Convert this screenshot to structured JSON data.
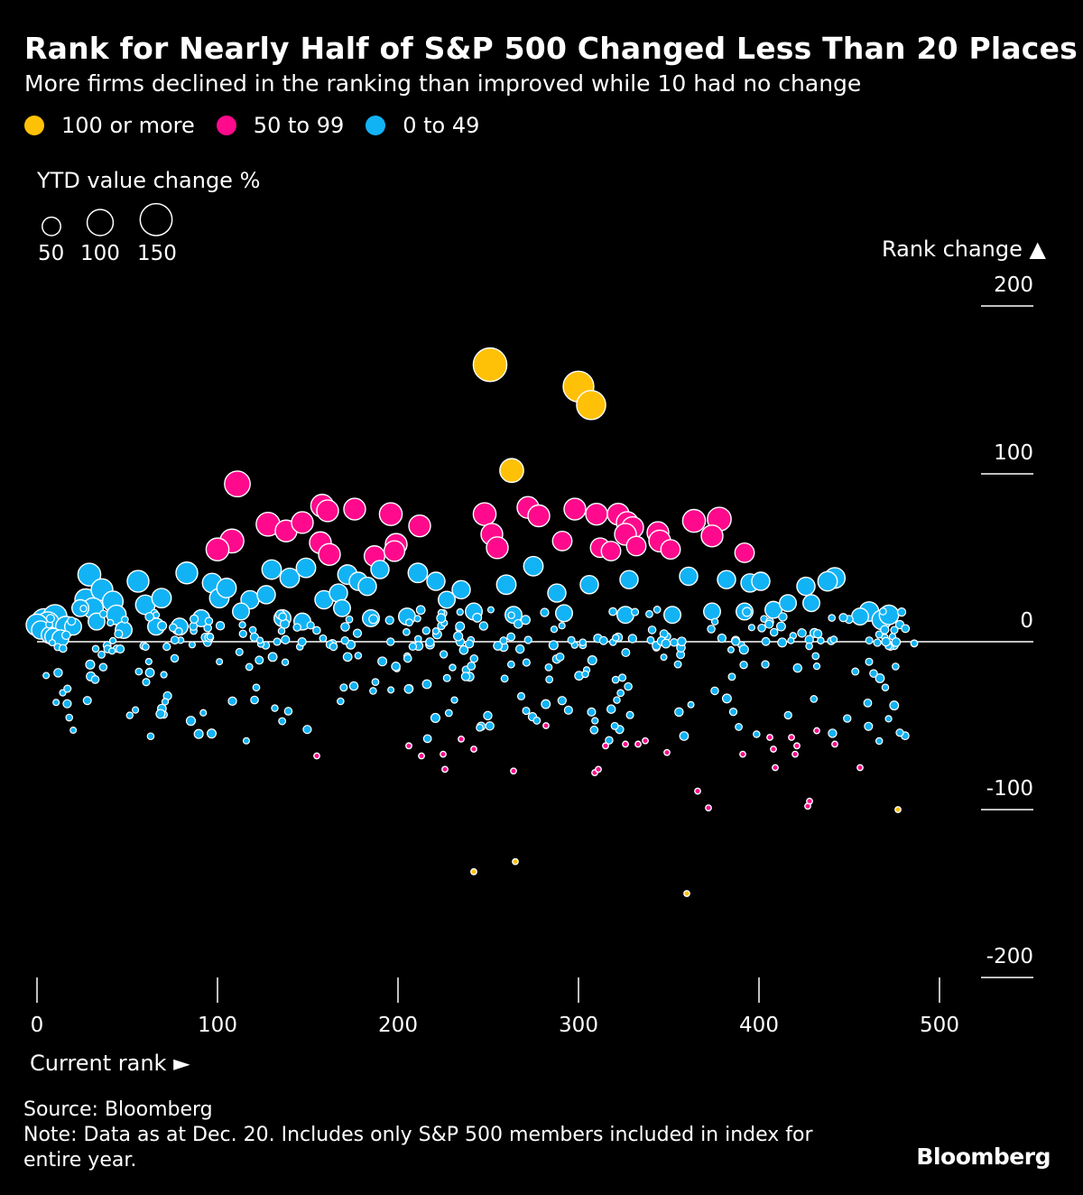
{
  "chart_data": {
    "type": "scatter",
    "title": "Rank for Nearly Half of S&P 500 Changed Less Than 20 Places",
    "subtitle": "More firms declined in the ranking than improved while 10 had no change",
    "legend": [
      {
        "label": "100 or more",
        "color": "#ffc107"
      },
      {
        "label": "50 to 99",
        "color": "#ff0a8c"
      },
      {
        "label": "0 to 49",
        "color": "#12b3f5"
      }
    ],
    "size_legend": {
      "title": "YTD value change %",
      "values": [
        50,
        100,
        150
      ],
      "labels": [
        "50",
        "100",
        "150"
      ]
    },
    "xlabel": "Current rank",
    "xlabel_arrow": "►",
    "ylabel": "Rank change",
    "ylabel_arrow": "▲",
    "xlim": [
      0,
      500
    ],
    "ylim": [
      -200,
      200
    ],
    "xticks": [
      0,
      100,
      200,
      300,
      400,
      500
    ],
    "xtick_labels": [
      "0",
      "100",
      "200",
      "300",
      "400",
      "500"
    ],
    "yticks": [
      200,
      100,
      0,
      -100,
      -200
    ],
    "ytick_labels": [
      "200",
      "100",
      "0",
      "-100",
      "-200"
    ],
    "series": [
      {
        "name": "100 or more",
        "color": "#ffc107",
        "points": [
          [
            251,
            165,
            120
          ],
          [
            300,
            152,
            100
          ],
          [
            307,
            141,
            90
          ],
          [
            263,
            102,
            60
          ],
          [
            242,
            -137,
            3
          ],
          [
            265,
            -131,
            3
          ],
          [
            360,
            -150,
            3
          ],
          [
            477,
            -100,
            3
          ]
        ]
      },
      {
        "name": "50 to 99",
        "color": "#ff0a8c",
        "points": [
          [
            111,
            94,
            70
          ],
          [
            158,
            81,
            55
          ],
          [
            161,
            78,
            50
          ],
          [
            176,
            79,
            50
          ],
          [
            196,
            76,
            55
          ],
          [
            212,
            69,
            50
          ],
          [
            248,
            76,
            55
          ],
          [
            272,
            80,
            50
          ],
          [
            278,
            75,
            50
          ],
          [
            298,
            79,
            50
          ],
          [
            310,
            76,
            50
          ],
          [
            322,
            76,
            50
          ],
          [
            327,
            71,
            50
          ],
          [
            330,
            68,
            50
          ],
          [
            364,
            72,
            55
          ],
          [
            378,
            73,
            60
          ],
          [
            128,
            70,
            60
          ],
          [
            138,
            66,
            50
          ],
          [
            147,
            71,
            50
          ],
          [
            108,
            60,
            60
          ],
          [
            100,
            55,
            55
          ],
          [
            157,
            59,
            50
          ],
          [
            162,
            52,
            50
          ],
          [
            187,
            51,
            45
          ],
          [
            199,
            58,
            50
          ],
          [
            198,
            54,
            45
          ],
          [
            252,
            64,
            50
          ],
          [
            255,
            56,
            50
          ],
          [
            291,
            60,
            40
          ],
          [
            312,
            56,
            40
          ],
          [
            318,
            54,
            40
          ],
          [
            332,
            57,
            40
          ],
          [
            326,
            64,
            50
          ],
          [
            344,
            65,
            50
          ],
          [
            345,
            60,
            50
          ],
          [
            351,
            55,
            40
          ],
          [
            374,
            63,
            50
          ],
          [
            392,
            53,
            40
          ],
          [
            155,
            -68,
            3
          ],
          [
            206,
            -62,
            3
          ],
          [
            213,
            -68,
            3
          ],
          [
            225,
            -67,
            3
          ],
          [
            226,
            -76,
            3
          ],
          [
            235,
            -58,
            3
          ],
          [
            242,
            -64,
            3
          ],
          [
            264,
            -77,
            3
          ],
          [
            282,
            -50,
            3
          ],
          [
            309,
            -78,
            3
          ],
          [
            311,
            -76,
            3
          ],
          [
            315,
            -62,
            3
          ],
          [
            326,
            -61,
            3
          ],
          [
            333,
            -61,
            3
          ],
          [
            337,
            -59,
            3
          ],
          [
            349,
            -66,
            3
          ],
          [
            366,
            -89,
            3
          ],
          [
            372,
            -99,
            3
          ],
          [
            391,
            -67,
            3
          ],
          [
            406,
            -57,
            3
          ],
          [
            408,
            -64,
            3
          ],
          [
            409,
            -75,
            3
          ],
          [
            418,
            -57,
            3
          ],
          [
            420,
            -67,
            3
          ],
          [
            421,
            -62,
            3
          ],
          [
            428,
            -95,
            3
          ],
          [
            427,
            -98,
            3
          ],
          [
            432,
            -53,
            3
          ],
          [
            442,
            -61,
            3
          ],
          [
            456,
            -75,
            3
          ]
        ]
      },
      {
        "name": "0 to 49",
        "color": "#12b3f5",
        "points": [
          [
            4,
            12,
            70
          ],
          [
            10,
            15,
            60
          ],
          [
            16,
            9,
            45
          ],
          [
            27,
            25,
            50
          ],
          [
            29,
            40,
            55
          ],
          [
            31,
            20,
            45
          ],
          [
            36,
            31,
            50
          ],
          [
            42,
            24,
            45
          ],
          [
            44,
            16,
            40
          ],
          [
            56,
            36,
            50
          ],
          [
            60,
            22,
            40
          ],
          [
            69,
            26,
            40
          ],
          [
            83,
            41,
            50
          ],
          [
            97,
            35,
            40
          ],
          [
            101,
            26,
            40
          ],
          [
            105,
            32,
            40
          ],
          [
            118,
            25,
            35
          ],
          [
            127,
            28,
            35
          ],
          [
            130,
            43,
            40
          ],
          [
            140,
            38,
            40
          ],
          [
            149,
            44,
            40
          ],
          [
            159,
            25,
            35
          ],
          [
            167,
            29,
            35
          ],
          [
            172,
            40,
            40
          ],
          [
            178,
            36,
            35
          ],
          [
            183,
            33,
            35
          ],
          [
            190,
            43,
            35
          ],
          [
            211,
            41,
            40
          ],
          [
            221,
            36,
            35
          ],
          [
            235,
            31,
            35
          ],
          [
            260,
            34,
            40
          ],
          [
            275,
            45,
            40
          ],
          [
            288,
            29,
            35
          ],
          [
            306,
            34,
            35
          ],
          [
            328,
            37,
            35
          ],
          [
            361,
            39,
            35
          ],
          [
            382,
            37,
            35
          ],
          [
            395,
            35,
            35
          ],
          [
            401,
            36,
            35
          ],
          [
            426,
            33,
            35
          ],
          [
            438,
            36,
            40
          ],
          [
            442,
            38,
            45
          ],
          [
            461,
            18,
            40
          ],
          [
            468,
            13,
            40
          ],
          [
            472,
            16,
            40
          ],
          [
            2,
            7,
            35
          ],
          [
            7,
            4,
            30
          ],
          [
            9,
            3,
            30
          ],
          [
            13,
            2,
            30
          ],
          [
            20,
            9,
            30
          ],
          [
            24,
            20,
            30
          ],
          [
            33,
            12,
            30
          ],
          [
            48,
            7,
            30
          ],
          [
            66,
            9,
            30
          ],
          [
            79,
            9,
            30
          ],
          [
            91,
            14,
            30
          ],
          [
            113,
            18,
            30
          ],
          [
            136,
            14,
            30
          ],
          [
            147,
            12,
            30
          ],
          [
            169,
            20,
            30
          ],
          [
            185,
            14,
            30
          ],
          [
            205,
            15,
            30
          ],
          [
            227,
            25,
            30
          ],
          [
            242,
            18,
            30
          ],
          [
            264,
            16,
            30
          ],
          [
            292,
            17,
            30
          ],
          [
            326,
            16,
            30
          ],
          [
            352,
            16,
            30
          ],
          [
            374,
            18,
            30
          ],
          [
            392,
            18,
            30
          ],
          [
            408,
            19,
            30
          ],
          [
            416,
            23,
            30
          ],
          [
            429,
            23,
            30
          ],
          [
            456,
            15,
            30
          ],
          [
            486,
            -1,
            5
          ],
          [
            0,
            10,
            50
          ],
          [
            6,
            11,
            55
          ]
        ]
      }
    ]
  },
  "source_text": "Source: Bloomberg",
  "note_text": "Note: Data as at Dec. 20. Includes only S&P 500 members included in index for entire year.",
  "brand": "Bloomberg"
}
